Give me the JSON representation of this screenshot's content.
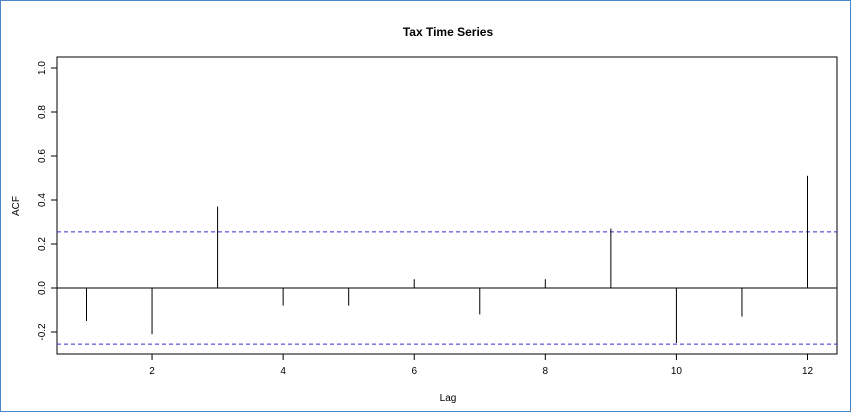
{
  "chart_data": {
    "type": "bar",
    "title": "Tax Time Series",
    "xlabel": "Lag",
    "ylabel": "ACF",
    "x": [
      1,
      2,
      3,
      4,
      5,
      6,
      7,
      8,
      9,
      10,
      11,
      12
    ],
    "values": [
      -0.15,
      -0.21,
      0.37,
      -0.08,
      -0.08,
      0.04,
      -0.12,
      0.04,
      0.27,
      -0.25,
      -0.13,
      0.51
    ],
    "xlim": [
      0.55,
      12.45
    ],
    "ylim": [
      -0.3,
      1.05
    ],
    "xticks": [
      "2",
      "4",
      "6",
      "8",
      "10",
      "12"
    ],
    "yticks": [
      "-0.2",
      "0.0",
      "0.2",
      "0.4",
      "0.6",
      "0.8",
      "1.0"
    ],
    "confidence_bounds": [
      0.255,
      -0.255
    ],
    "colors": {
      "spike": "#000000",
      "bound": "#3333cc",
      "frame": "#4a86c8"
    }
  }
}
